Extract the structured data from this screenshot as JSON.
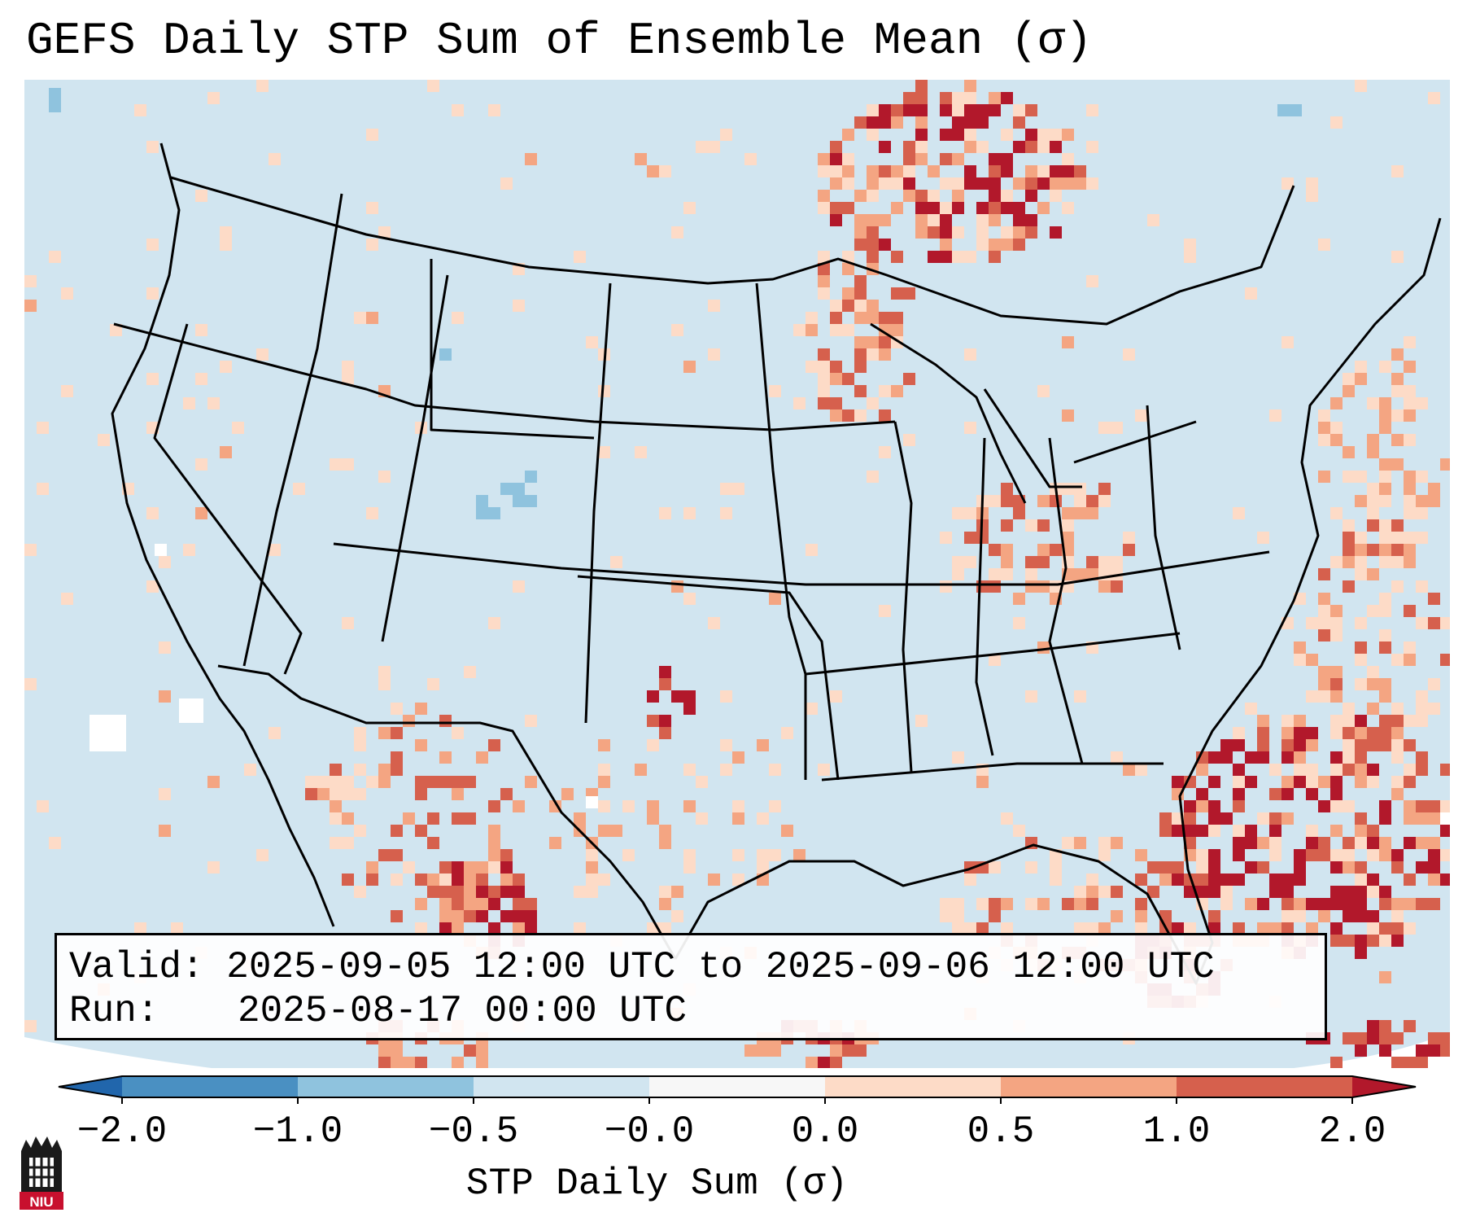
{
  "title": "GEFS Daily STP Sum of Ensemble Mean (σ)",
  "info": {
    "valid_label": "Valid:",
    "valid_value": "2025-09-05 12:00 UTC to 2025-09-06 12:00 UTC",
    "run_label": "Run:",
    "run_value": "2025-08-17 00:00 UTC"
  },
  "colorbar": {
    "label": "STP Daily Sum (σ)",
    "ticks": [
      "−2.0",
      "−1.0",
      "−0.5",
      "−0.0",
      "0.0",
      "0.5",
      "1.0",
      "2.0"
    ],
    "bins": [
      {
        "from": -2.0,
        "to": -1.0,
        "color": "#4a90c2"
      },
      {
        "from": -1.0,
        "to": -0.5,
        "color": "#8fc3de"
      },
      {
        "from": -0.5,
        "to": -0.0,
        "color": "#d1e5f0"
      },
      {
        "from": -0.0,
        "to": 0.0,
        "color": "#f7f7f7"
      },
      {
        "from": 0.0,
        "to": 0.5,
        "color": "#fddbc7"
      },
      {
        "from": 0.5,
        "to": 1.0,
        "color": "#f4a582"
      },
      {
        "from": 1.0,
        "to": 2.0,
        "color": "#d6604d"
      }
    ],
    "under_color": "#2166ac",
    "over_color": "#b2182b"
  },
  "map": {
    "ocean_color": "#d1e5f0",
    "extent": "Continental United States",
    "projection": "Lambert Conformal"
  },
  "logo": {
    "text": "NIU",
    "color": "#c8102e"
  }
}
